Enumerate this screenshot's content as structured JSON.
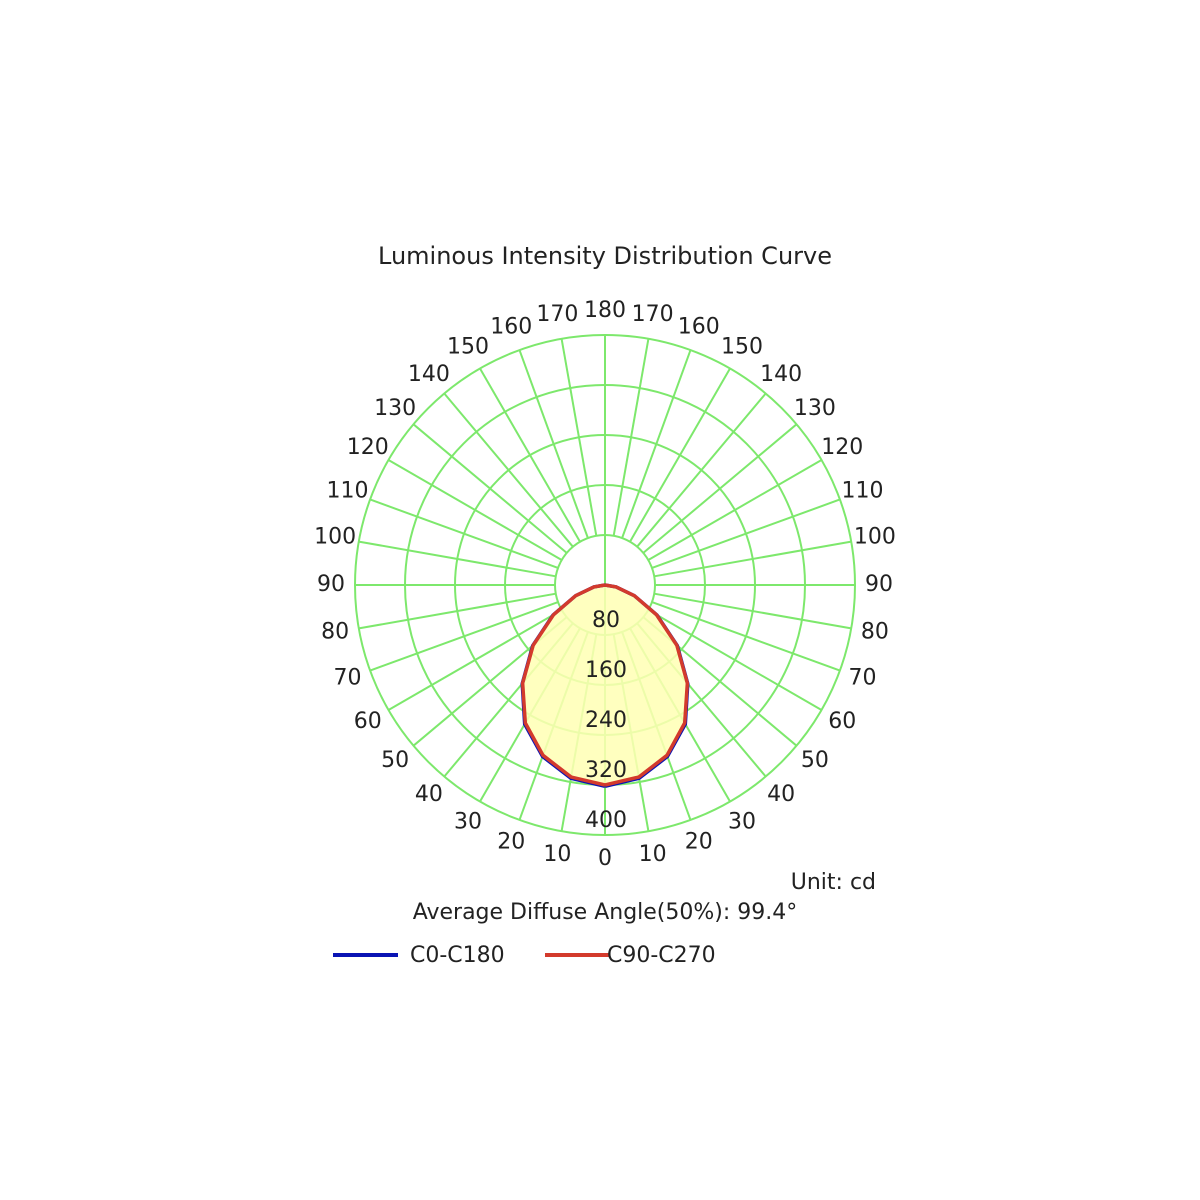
{
  "chart_data": {
    "type": "polar",
    "title": "Luminous Intensity Distribution Curve",
    "angles": [
      0,
      10,
      20,
      30,
      40,
      50,
      60,
      70,
      80,
      90
    ],
    "series": [
      {
        "name": "C0-C180",
        "color": "#0a14b4",
        "values": [
          322,
          314,
          292,
          257,
          206,
          151,
          96,
          50,
          18,
          0
        ]
      },
      {
        "name": "C90-C270",
        "color": "#d33a2c",
        "values": [
          320,
          312,
          290,
          255,
          205,
          150,
          95,
          50,
          18,
          0
        ]
      }
    ],
    "rlim": [
      0,
      400
    ],
    "rticks": [
      80,
      160,
      240,
      320,
      400
    ],
    "angle_ticks": [
      0,
      10,
      20,
      30,
      40,
      50,
      60,
      70,
      80,
      90,
      100,
      110,
      120,
      130,
      140,
      150,
      160,
      170,
      180
    ],
    "fill_color": "#ffffb4",
    "grid_color": "#7de86c",
    "unit": "Unit: cd",
    "note": "Average Diffuse Angle(50%): 99.4°"
  }
}
